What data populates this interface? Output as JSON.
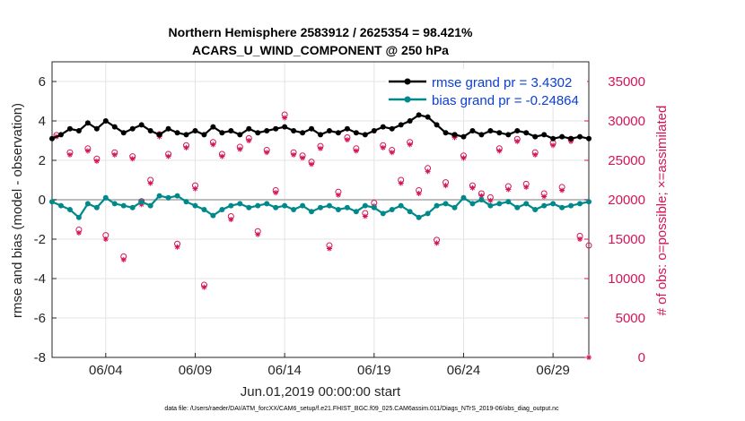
{
  "chart_data": {
    "type": "line",
    "title_line1": "Northern Hemisphere 2583912 / 2625354 = 98.421%",
    "title_line2": "ACARS_U_WIND_COMPONENT @ 250 hPa",
    "xlabel": "Jun.01,2019 00:00:00 start",
    "ylabel_left": "rmse and bias (model - observation)",
    "ylabel_right": "# of obs: o=possible; ×=assimilated",
    "footnote": "data file: /Users/raeder/DAI/ATM_forcXX/CAM6_setup/f.e21.FHIST_BGC.f09_025.CAM6assim.011/Diags_NTrS_2019-06/obs_diag_output.nc",
    "ylim_left": [
      -8,
      7
    ],
    "ylim_right": [
      0,
      37500
    ],
    "xlim": [
      1.0,
      31.0
    ],
    "yticks_left": [
      -8,
      -6,
      -4,
      -2,
      0,
      2,
      4,
      6
    ],
    "yticks_right": [
      0,
      5000,
      10000,
      15000,
      20000,
      25000,
      30000,
      35000
    ],
    "xticks": [
      {
        "value": 4,
        "label": "06/04"
      },
      {
        "value": 9,
        "label": "06/09"
      },
      {
        "value": 14,
        "label": "06/14"
      },
      {
        "value": 19,
        "label": "06/19"
      },
      {
        "value": 24,
        "label": "06/24"
      },
      {
        "value": 29,
        "label": "06/29"
      }
    ],
    "grid": true,
    "legend_position": "top-right",
    "series": [
      {
        "name": "rmse grand pr = 3.4302",
        "color": "#000000",
        "legend_text_color": "#0a3ed8",
        "axis": "left",
        "x": [
          1.0,
          1.5,
          2.0,
          2.5,
          3.0,
          3.5,
          4.0,
          4.5,
          5.0,
          5.5,
          6.0,
          6.5,
          7.0,
          7.5,
          8.0,
          8.5,
          9.0,
          9.5,
          10.0,
          10.5,
          11.0,
          11.5,
          12.0,
          12.5,
          13.0,
          13.5,
          14.0,
          14.5,
          15.0,
          15.5,
          16.0,
          16.5,
          17.0,
          17.5,
          18.0,
          18.5,
          19.0,
          19.5,
          20.0,
          20.5,
          21.0,
          21.5,
          22.0,
          22.5,
          23.0,
          23.5,
          24.0,
          24.5,
          25.0,
          25.5,
          26.0,
          26.5,
          27.0,
          27.5,
          28.0,
          28.5,
          29.0,
          29.5,
          30.0,
          30.5,
          31.0
        ],
        "values": [
          3.1,
          3.3,
          3.6,
          3.5,
          3.9,
          3.6,
          4.0,
          3.7,
          3.4,
          3.6,
          3.8,
          3.5,
          3.3,
          3.6,
          3.4,
          3.3,
          3.5,
          3.3,
          3.7,
          3.4,
          3.5,
          3.3,
          3.6,
          3.4,
          3.5,
          3.6,
          3.7,
          3.5,
          3.4,
          3.6,
          3.3,
          3.5,
          3.4,
          3.6,
          3.4,
          3.3,
          3.5,
          3.7,
          3.6,
          3.8,
          4.0,
          4.3,
          4.2,
          3.8,
          3.4,
          3.3,
          3.2,
          3.5,
          3.3,
          3.5,
          3.4,
          3.3,
          3.5,
          3.4,
          3.2,
          3.3,
          3.1,
          3.2,
          3.1,
          3.2,
          3.1
        ]
      },
      {
        "name": "bias grand pr = -0.24864",
        "color": "#00898a",
        "legend_text_color": "#0a3ed8",
        "axis": "left",
        "x": [
          1.0,
          1.5,
          2.0,
          2.5,
          3.0,
          3.5,
          4.0,
          4.5,
          5.0,
          5.5,
          6.0,
          6.5,
          7.0,
          7.5,
          8.0,
          8.5,
          9.0,
          9.5,
          10.0,
          10.5,
          11.0,
          11.5,
          12.0,
          12.5,
          13.0,
          13.5,
          14.0,
          14.5,
          15.0,
          15.5,
          16.0,
          16.5,
          17.0,
          17.5,
          18.0,
          18.5,
          19.0,
          19.5,
          20.0,
          20.5,
          21.0,
          21.5,
          22.0,
          22.5,
          23.0,
          23.5,
          24.0,
          24.5,
          25.0,
          25.5,
          26.0,
          26.5,
          27.0,
          27.5,
          28.0,
          28.5,
          29.0,
          29.5,
          30.0,
          30.5,
          31.0
        ],
        "values": [
          -0.1,
          -0.3,
          -0.5,
          -0.9,
          -0.2,
          -0.4,
          0.1,
          -0.2,
          -0.3,
          -0.4,
          -0.1,
          -0.3,
          0.2,
          0.1,
          0.2,
          -0.1,
          -0.3,
          -0.5,
          -0.8,
          -0.5,
          -0.3,
          -0.2,
          -0.4,
          -0.3,
          -0.2,
          -0.4,
          -0.3,
          -0.5,
          -0.3,
          -0.6,
          -0.4,
          -0.3,
          -0.5,
          -0.4,
          -0.6,
          -0.3,
          -0.4,
          -0.7,
          -0.5,
          -0.3,
          -0.6,
          -0.9,
          -0.7,
          -0.3,
          -0.2,
          -0.4,
          0.1,
          -0.2,
          0.0,
          -0.3,
          -0.2,
          -0.1,
          -0.4,
          -0.2,
          -0.5,
          -0.3,
          -0.2,
          -0.4,
          -0.3,
          -0.2,
          -0.1
        ]
      },
      {
        "name": "possible obs",
        "marker": "o",
        "color": "#d4145a",
        "axis": "right",
        "x": [
          1.25,
          2.0,
          2.5,
          3.0,
          3.5,
          4.0,
          4.5,
          5.0,
          5.5,
          6.0,
          6.5,
          7.0,
          7.5,
          8.0,
          8.5,
          9.0,
          9.5,
          10.0,
          10.5,
          11.0,
          11.5,
          12.0,
          12.5,
          13.0,
          13.5,
          14.0,
          14.5,
          15.0,
          15.5,
          16.0,
          16.5,
          17.0,
          17.5,
          18.0,
          18.5,
          19.0,
          19.5,
          20.0,
          20.5,
          21.0,
          21.5,
          22.0,
          22.5,
          23.0,
          23.5,
          24.0,
          24.5,
          25.0,
          25.5,
          26.0,
          26.5,
          27.0,
          27.5,
          28.0,
          28.5,
          29.0,
          29.5,
          30.0,
          30.5,
          31.0
        ],
        "values": [
          28200,
          26000,
          16200,
          26500,
          25200,
          15500,
          26000,
          12800,
          25500,
          19800,
          22500,
          28300,
          25800,
          14400,
          26900,
          21800,
          9200,
          27300,
          25800,
          17900,
          26700,
          27800,
          16000,
          26300,
          21200,
          30800,
          26000,
          25600,
          24800,
          26800,
          14200,
          21000,
          27900,
          26500,
          18300,
          19600,
          26900,
          26300,
          22500,
          27300,
          21200,
          24000,
          14900,
          22200,
          28200,
          25600,
          21800,
          20800,
          20300,
          26500,
          21700,
          27700,
          22000,
          26000,
          20800,
          27200,
          21600,
          27700,
          15400,
          14200
        ]
      },
      {
        "name": "assimilated obs",
        "marker": "x",
        "color": "#d4145a",
        "axis": "right",
        "x": [
          1.25,
          2.0,
          2.5,
          3.0,
          3.5,
          4.0,
          4.5,
          5.0,
          5.5,
          6.0,
          6.5,
          7.0,
          7.5,
          8.0,
          8.5,
          9.0,
          9.5,
          10.0,
          10.5,
          11.0,
          11.5,
          12.0,
          12.5,
          13.0,
          13.5,
          14.0,
          14.5,
          15.0,
          15.5,
          16.0,
          16.5,
          17.0,
          17.5,
          18.0,
          18.5,
          19.0,
          19.5,
          20.0,
          20.5,
          21.0,
          21.5,
          22.0,
          22.5,
          23.0,
          23.5,
          24.0,
          24.5,
          25.0,
          25.5,
          26.0,
          26.5,
          27.0,
          27.5,
          28.0,
          28.5,
          29.0,
          29.5,
          30.0,
          30.5,
          31.0
        ],
        "values": [
          28000,
          25700,
          15800,
          26200,
          24900,
          15000,
          25700,
          12400,
          25200,
          19400,
          22100,
          28000,
          25500,
          14000,
          26600,
          21400,
          8900,
          27000,
          25500,
          17500,
          26400,
          27500,
          15600,
          26000,
          20900,
          30400,
          25700,
          25300,
          24500,
          26500,
          13800,
          20600,
          27600,
          26200,
          17900,
          19200,
          26600,
          26000,
          22100,
          27000,
          20800,
          23600,
          14500,
          21800,
          27900,
          25300,
          21500,
          20500,
          19900,
          26200,
          21300,
          27400,
          21600,
          25700,
          20400,
          26900,
          21200,
          27400,
          15000,
          0
        ]
      }
    ]
  }
}
